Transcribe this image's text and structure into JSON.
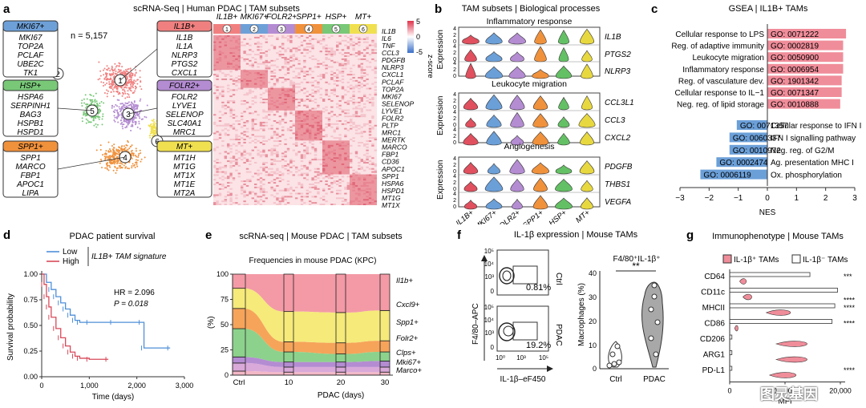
{
  "panels": {
    "a": {
      "letter": "a",
      "title": "scRNA-Seq | Human PDAC | TAM subsets",
      "n_label": "n = 5,157",
      "clusters": [
        {
          "id": "1",
          "name": "IL1B+",
          "color": "#f08080",
          "genes": [
            "IL1B",
            "IL1A",
            "NLRP3",
            "PTGS2",
            "CXCL1"
          ]
        },
        {
          "id": "2",
          "name": "MKI67+",
          "color": "#6ea0d8",
          "genes": [
            "MKI67",
            "TOP2A",
            "PCLAF",
            "UBE2C",
            "TK1"
          ]
        },
        {
          "id": "3",
          "name": "FOLR2+",
          "color": "#b48cd2",
          "genes": [
            "FOLR2",
            "LYVE1",
            "SELENOP",
            "SLC40A1",
            "MRC1"
          ]
        },
        {
          "id": "4",
          "name": "SPP1+",
          "color": "#f0913c",
          "genes": [
            "SPP1",
            "MARCO",
            "FBP1",
            "APOC1",
            "LIPA"
          ]
        },
        {
          "id": "5",
          "name": "HSP+",
          "color": "#78c878",
          "genes": [
            "HSPA6",
            "SERPINH1",
            "BAG3",
            "HSPB1",
            "HSPD1"
          ]
        },
        {
          "id": "6",
          "name": "MT+",
          "color": "#f0e050",
          "genes": [
            "MT1H",
            "MT1G",
            "MT1X",
            "MT1E",
            "MT2A"
          ]
        }
      ],
      "heatmap_genes": [
        "IL1B",
        "IL6",
        "TNF",
        "CCL3",
        "PDGFB",
        "NLRP3",
        "CXCL1",
        "PCLAF",
        "TOP2A",
        "MKI67",
        "SELENOP",
        "LYVE1",
        "FOLR2",
        "PLTP",
        "MRC1",
        "MERTK",
        "MARCO",
        "FBP1",
        "CD36",
        "APOC1",
        "SPP1",
        "HSPA6",
        "HSPD1",
        "MT1G",
        "MT1X"
      ],
      "zscore_label": "z-score",
      "zscore_ticks": [
        "5",
        "0",
        "-5"
      ]
    },
    "b": {
      "letter": "b",
      "title": "TAM subsets | Biological processes",
      "ylabel": "Expression",
      "groups": [
        {
          "title": "Inflammatory response",
          "genes": [
            "IL1B",
            "PTGS2",
            "NLRP3"
          ]
        },
        {
          "title": "Leukocyte migration",
          "genes": [
            "CCL3L1",
            "CCL3",
            "CXCL2"
          ]
        },
        {
          "title": "Angiogenesis",
          "genes": [
            "PDGFB",
            "THBS1",
            "VEGFA"
          ]
        }
      ],
      "yticks": [
        "0",
        "2",
        "4"
      ],
      "categories": [
        "IL1B+",
        "MKI67+",
        "FOLR2+",
        "SPP1+",
        "HSP+",
        "MT+"
      ]
    },
    "f": {
      "letter": "f",
      "title": "IL-1β expression | Mouse TAMs",
      "ctrl_label": "Ctrl",
      "pdac_label": "PDAC",
      "ctrl_pct": "0.81%",
      "pdac_pct": "19.2%",
      "y_axis": "F4/80–APC",
      "x_axis": "IL-1β–eF450",
      "flow_ticks": [
        "10⁵",
        "10⁴",
        "10³",
        "0"
      ],
      "x_ticks": [
        "10⁰",
        "10³",
        "10⁵"
      ],
      "violin_title": "F4/80⁺IL-1β⁺",
      "violin_ylabel": "Macrophages (%)",
      "sig": "**"
    },
    "watermark": "图灵基因"
  },
  "chart_data": [
    {
      "type": "bar",
      "panel": "c",
      "title": "GSEA | IL1B+ TAMs",
      "xlabel": "NES",
      "xlim": [
        -3,
        3
      ],
      "xticks": [
        "−3",
        "−2",
        "−1",
        "0",
        "1",
        "2",
        "3"
      ],
      "categories": [
        "Cellular response to LPS",
        "Reg. of adaptive immunity",
        "Leukocyte migration",
        "Inflammatory response",
        "Reg. of vasculature dev.",
        "Cellular response to IL−1",
        "Neg. reg. of lipid storage",
        "Cellular response to IFN I",
        "IFN I signalling pathway",
        "Neg. reg. of G2/M",
        "Ag. presentation MHC I",
        "Ox. phosphorylation"
      ],
      "go_ids": [
        "GO: 0071222",
        "GO: 0002819",
        "GO: 0050900",
        "GO: 0006954",
        "GO: 1901342",
        "GO: 0071347",
        "GO: 0010888",
        "GO: 0071357",
        "GO: 0060337",
        "GO: 0010972",
        "GO: 0002474",
        "GO: 0006119"
      ],
      "values": [
        2.7,
        2.6,
        2.6,
        2.6,
        2.55,
        2.55,
        2.5,
        -1.05,
        -1.3,
        -1.3,
        -1.75,
        -2.3
      ],
      "colors": {
        "positive": "#f08d9a",
        "negative": "#6b9fd8"
      }
    },
    {
      "type": "line",
      "panel": "d",
      "title": "PDAC patient survival",
      "legend_title": "IL1B+ TAM signature",
      "xlabel": "Time (days)",
      "ylabel": "Survival probability",
      "xlim": [
        0,
        3000
      ],
      "ylim": [
        0,
        1
      ],
      "xticks": [
        "0",
        "1,000",
        "2,000",
        "3,000"
      ],
      "yticks": [
        "0.00",
        "0.25",
        "0.50",
        "0.75",
        "1.00"
      ],
      "hr": "HR = 2.096",
      "p": "P = 0.018",
      "series": [
        {
          "name": "Low",
          "color": "#4f8fd8",
          "x": [
            0,
            100,
            200,
            300,
            400,
            500,
            600,
            700,
            800,
            1000,
            1500,
            2100,
            2150,
            2700
          ],
          "y": [
            1,
            0.92,
            0.85,
            0.78,
            0.72,
            0.66,
            0.6,
            0.55,
            0.53,
            0.53,
            0.53,
            0.53,
            0.28,
            0.28
          ]
        },
        {
          "name": "High",
          "color": "#d84a5a",
          "x": [
            0,
            50,
            100,
            150,
            200,
            300,
            400,
            500,
            600,
            700,
            800,
            1000,
            1400
          ],
          "y": [
            1,
            0.9,
            0.78,
            0.68,
            0.58,
            0.47,
            0.38,
            0.3,
            0.24,
            0.2,
            0.18,
            0.17,
            0.17
          ]
        }
      ]
    },
    {
      "type": "area",
      "panel": "e",
      "title": "scRNA-seq | Mouse PDAC | TAM subsets",
      "subtitle": "Frequencies in mouse PDAC (KPC)",
      "xlabel": "PDAC (days)",
      "ylabel": "(%)",
      "categories": [
        "Ctrl",
        "10",
        "20",
        "30"
      ],
      "yticks": [
        "0",
        "25",
        "50",
        "75",
        "100"
      ],
      "ylim": [
        0,
        100
      ],
      "series": [
        {
          "name": "Marco+",
          "color": "#f3b7c6",
          "values": [
            4,
            3,
            3,
            3
          ]
        },
        {
          "name": "Mki67+",
          "color": "#d9a9d9",
          "values": [
            8,
            5,
            5,
            5
          ]
        },
        {
          "name": "Clps+",
          "color": "#b48cd2",
          "values": [
            6,
            5,
            5,
            6
          ]
        },
        {
          "name": "Folr2+",
          "color": "#8cd28c",
          "values": [
            28,
            10,
            8,
            9
          ]
        },
        {
          "name": "Spp1+",
          "color": "#f6a45a",
          "values": [
            20,
            10,
            11,
            11
          ]
        },
        {
          "name": "Cxcl9+",
          "color": "#f5ea7a",
          "values": [
            20,
            30,
            30,
            30
          ]
        },
        {
          "name": "Il1b+",
          "color": "#f39aa6",
          "values": [
            14,
            37,
            38,
            36
          ]
        }
      ]
    },
    {
      "type": "bar",
      "panel": "g",
      "title": "Immunophenotype | Mouse TAMs",
      "xlabel": "MFI",
      "xlim": [
        0,
        20000
      ],
      "xticks": [
        "0",
        "10,000",
        "20,000"
      ],
      "legend": [
        "IL-1β⁺ TAMs",
        "IL-1β⁻ TAMs"
      ],
      "categories": [
        "CD64",
        "CD11c",
        "MHCII",
        "CD86",
        "CD206",
        "ARG1",
        "PD-L1"
      ],
      "series": [
        {
          "name": "IL-1β⁺ TAMs",
          "color": "#f08d9a",
          "values": [
            3000,
            4000,
            11000,
            1500,
            14000,
            14000,
            12000
          ]
        },
        {
          "name": "IL-1β⁻ TAMs",
          "color": "#ffffff",
          "values": [
            14500,
            19500,
            19000,
            18500,
            400,
            400,
            400
          ]
        }
      ],
      "sig": [
        "***",
        "****",
        "****",
        "****",
        "****"
      ]
    }
  ]
}
